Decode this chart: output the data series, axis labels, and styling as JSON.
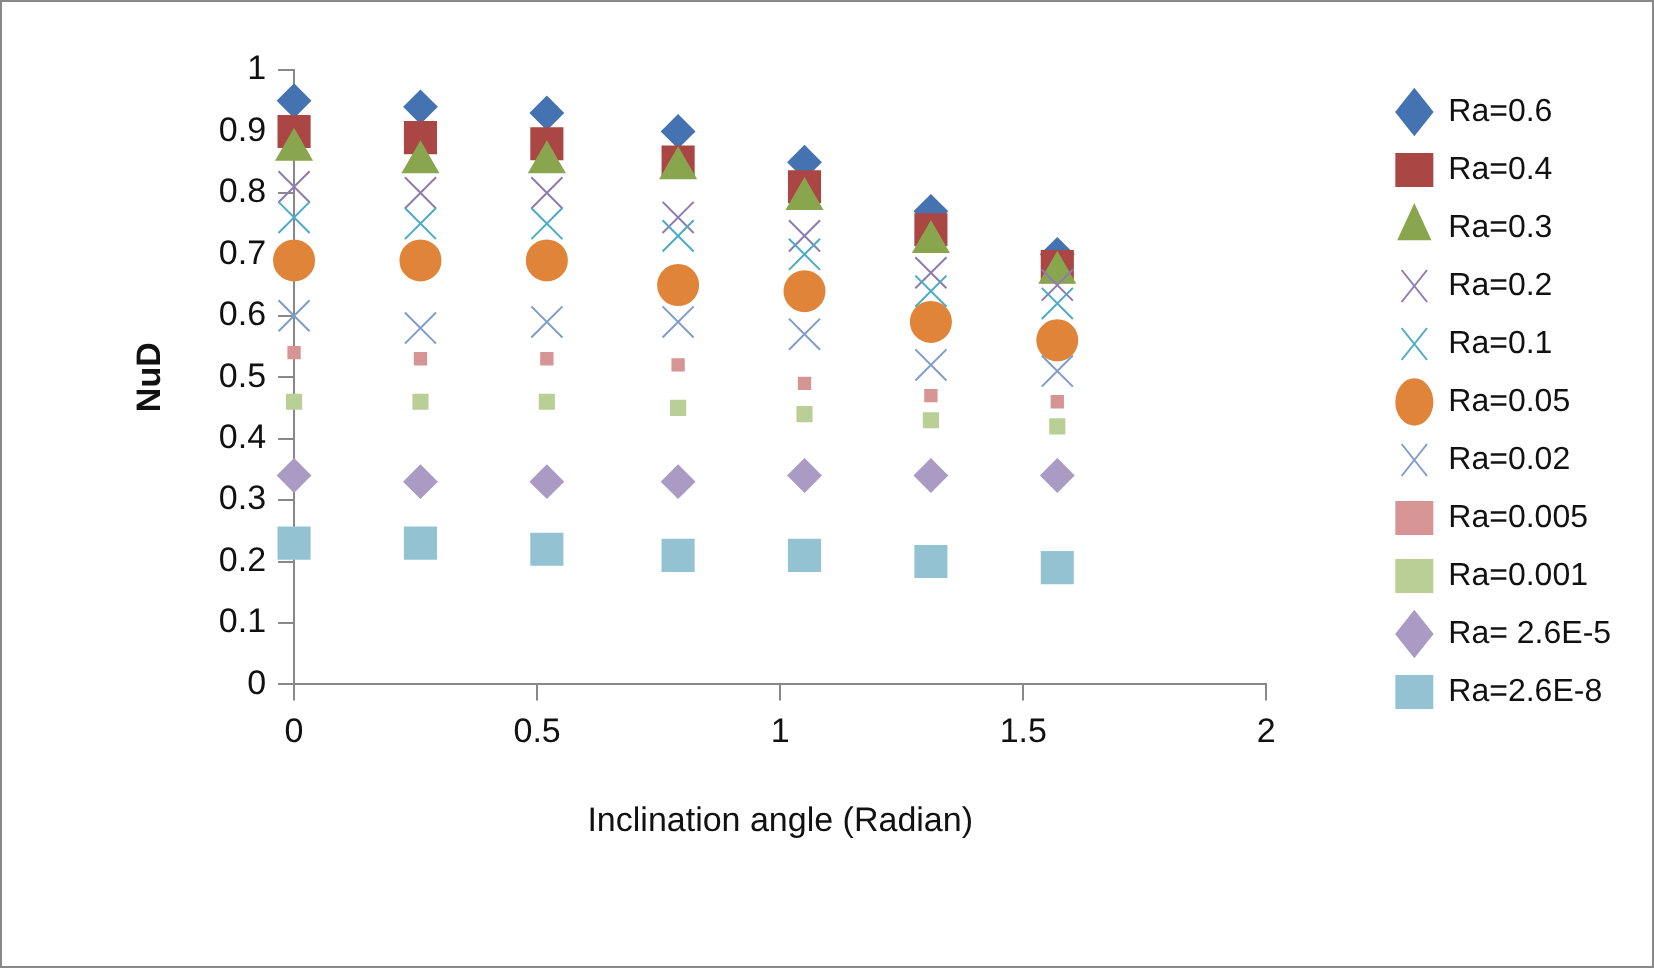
{
  "chart_data": {
    "type": "scatter",
    "xlabel": "Inclination angle (Radian)",
    "ylabel": "NuD",
    "x": [
      0,
      0.26,
      0.52,
      0.79,
      1.05,
      1.31,
      1.57
    ],
    "xlim": [
      0,
      2
    ],
    "xticks": [
      0,
      0.5,
      1,
      1.5,
      2
    ],
    "ylim": [
      0,
      1
    ],
    "yticks": [
      0,
      0.1,
      0.2,
      0.3,
      0.4,
      0.5,
      0.6,
      0.7,
      0.8,
      0.9,
      1
    ],
    "grid": false,
    "legend": "right",
    "series": [
      {
        "name": "Ra=0.6",
        "color": "#4573b2",
        "marker": "diamond",
        "values": [
          0.95,
          0.94,
          0.93,
          0.9,
          0.85,
          0.77,
          0.7
        ]
      },
      {
        "name": "Ra=0.4",
        "color": "#aa4643",
        "marker": "square",
        "values": [
          0.9,
          0.89,
          0.88,
          0.85,
          0.81,
          0.74,
          0.68
        ]
      },
      {
        "name": "Ra=0.3",
        "color": "#89a54e",
        "marker": "triangle",
        "values": [
          0.87,
          0.85,
          0.85,
          0.84,
          0.79,
          0.72,
          0.67
        ]
      },
      {
        "name": "Ra=0.2",
        "color": "#8e7cb0",
        "marker": "cross",
        "values": [
          0.81,
          0.8,
          0.8,
          0.76,
          0.73,
          0.67,
          0.65
        ]
      },
      {
        "name": "Ra=0.1",
        "color": "#4aacc6",
        "marker": "cross",
        "values": [
          0.76,
          0.75,
          0.75,
          0.73,
          0.7,
          0.64,
          0.62
        ]
      },
      {
        "name": "Ra=0.05",
        "color": "#e0843a",
        "marker": "circle",
        "values": [
          0.69,
          0.69,
          0.69,
          0.65,
          0.64,
          0.59,
          0.56
        ]
      },
      {
        "name": "Ra=0.02",
        "color": "#7f9dcc",
        "marker": "cross",
        "values": [
          0.6,
          0.58,
          0.59,
          0.59,
          0.57,
          0.52,
          0.51
        ]
      },
      {
        "name": "Ra=0.005",
        "color": "#d69594",
        "marker": "square",
        "values": [
          0.54,
          0.53,
          0.53,
          0.52,
          0.49,
          0.47,
          0.46
        ]
      },
      {
        "name": "Ra=0.001",
        "color": "#b9cf96",
        "marker": "square",
        "values": [
          0.46,
          0.46,
          0.46,
          0.45,
          0.44,
          0.43,
          0.42
        ]
      },
      {
        "name": "Ra= 2.6E-5",
        "color": "#a99bc3",
        "marker": "diamond",
        "values": [
          0.34,
          0.33,
          0.33,
          0.33,
          0.34,
          0.34,
          0.34
        ]
      },
      {
        "name": "Ra=2.6E-8",
        "color": "#93c3d3",
        "marker": "square",
        "values": [
          0.23,
          0.23,
          0.22,
          0.21,
          0.21,
          0.2,
          0.19
        ]
      }
    ]
  }
}
